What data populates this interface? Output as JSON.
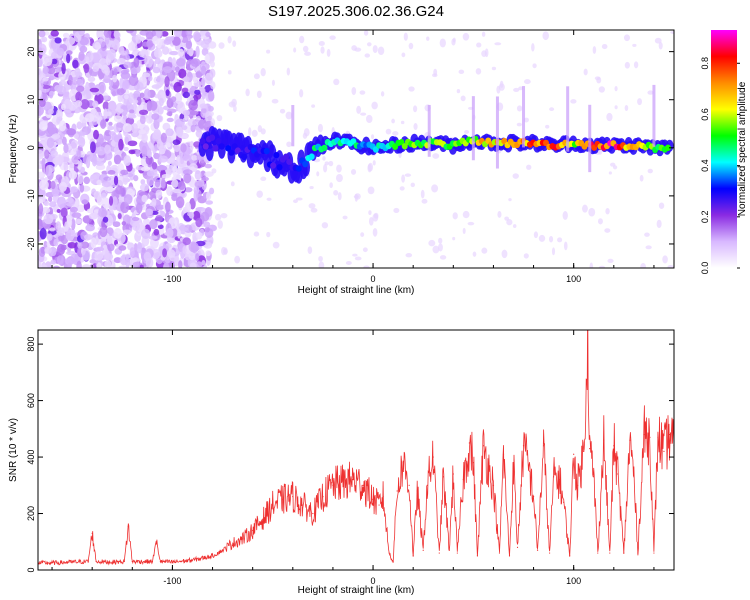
{
  "figure_title": "S197.2025.306.02.36.G24",
  "chart_data": [
    {
      "id": "spectrogram",
      "type": "heatmap",
      "title": "S197.2025.306.02.36.G24",
      "xlabel": "Height of straight line (km)",
      "ylabel": "Frequency (Hz)",
      "xlim": [
        -167,
        150
      ],
      "ylim": [
        -25,
        24.5
      ],
      "x_ticks": [
        -100,
        0,
        100
      ],
      "x_tick_labels": [
        "-100",
        "0",
        "100"
      ],
      "y_ticks": [
        -20,
        -10,
        0,
        10,
        20
      ],
      "y_tick_labels": [
        "-20",
        "-10",
        "0",
        "10",
        "20"
      ],
      "colorbar": {
        "label": "Normalized spectral amplitude",
        "range": [
          0,
          0.93
        ],
        "ticks": [
          0.0,
          0.2,
          0.4,
          0.6,
          0.8
        ],
        "tick_labels": [
          "0.0",
          "0.2",
          "0.4",
          "0.6",
          "0.8"
        ],
        "colors": [
          "#ffffff",
          "#d8b8ff",
          "#8a2be2",
          "#0000ff",
          "#00ffff",
          "#00ff00",
          "#ffff00",
          "#ff8c00",
          "#ff0000",
          "#ff00ff"
        ]
      },
      "ridge": {
        "description": "dominant spectral ridge near 0 Hz",
        "x": [
          -85,
          -75,
          -60,
          -45,
          -38,
          -30,
          -20,
          -10,
          0,
          10,
          20,
          30,
          40,
          50,
          60,
          70,
          80,
          90,
          100,
          110,
          120,
          130,
          140,
          148
        ],
        "frequency": [
          1,
          1,
          -1,
          -3,
          -4,
          -1,
          1.5,
          1,
          0,
          0.5,
          1,
          1,
          0.5,
          1.5,
          1,
          1,
          1,
          0.5,
          1,
          0.5,
          0.5,
          0.5,
          0,
          0
        ],
        "amplitude": [
          0.25,
          0.3,
          0.3,
          0.3,
          0.3,
          0.45,
          0.5,
          0.45,
          0.4,
          0.5,
          0.55,
          0.6,
          0.5,
          0.65,
          0.7,
          0.75,
          0.75,
          0.85,
          0.6,
          0.85,
          0.85,
          0.7,
          0.55,
          0.5
        ]
      }
    },
    {
      "id": "snr",
      "type": "line",
      "xlabel": "Height of straight line (km)",
      "ylabel": "SNR (10 * v/v)",
      "xlim": [
        -167,
        150
      ],
      "ylim": [
        0,
        850
      ],
      "x_ticks": [
        -100,
        0,
        100
      ],
      "x_tick_labels": [
        "-100",
        "0",
        "100"
      ],
      "y_ticks": [
        0,
        200,
        400,
        600,
        800
      ],
      "y_tick_labels": [
        "0",
        "200",
        "400",
        "600",
        "800"
      ],
      "color": "#ee3030",
      "series": [
        {
          "name": "SNR",
          "x": [
            -167,
            -160,
            -150,
            -142,
            -140,
            -138,
            -130,
            -124,
            -122,
            -120,
            -110,
            -108,
            -106,
            -100,
            -90,
            -80,
            -75,
            -70,
            -65,
            -60,
            -55,
            -50,
            -45,
            -40,
            -35,
            -30,
            -25,
            -20,
            -15,
            -10,
            -5,
            0,
            3,
            5,
            8,
            10,
            12,
            15,
            18,
            20,
            22,
            25,
            27,
            30,
            33,
            35,
            38,
            40,
            42,
            45,
            48,
            50,
            52,
            55,
            58,
            60,
            63,
            65,
            68,
            70,
            72,
            75,
            78,
            80,
            82,
            85,
            88,
            90,
            93,
            95,
            98,
            100,
            102,
            105,
            107,
            108,
            110,
            112,
            115,
            118,
            120,
            122,
            125,
            128,
            130,
            132,
            135,
            138,
            140,
            142,
            145,
            148,
            150
          ],
          "y": [
            25,
            25,
            28,
            30,
            130,
            30,
            28,
            30,
            155,
            30,
            30,
            100,
            30,
            28,
            35,
            50,
            70,
            95,
            110,
            140,
            180,
            230,
            250,
            260,
            230,
            200,
            260,
            300,
            310,
            320,
            300,
            250,
            230,
            260,
            60,
            30,
            280,
            380,
            300,
            50,
            280,
            70,
            300,
            400,
            60,
            330,
            70,
            340,
            60,
            320,
            450,
            380,
            50,
            440,
            350,
            300,
            60,
            410,
            50,
            380,
            80,
            440,
            350,
            260,
            70,
            440,
            60,
            330,
            320,
            240,
            50,
            410,
            300,
            420,
            850,
            430,
            330,
            60,
            460,
            60,
            440,
            340,
            60,
            460,
            330,
            60,
            480,
            470,
            60,
            470,
            420,
            480,
            440
          ]
        }
      ]
    }
  ]
}
